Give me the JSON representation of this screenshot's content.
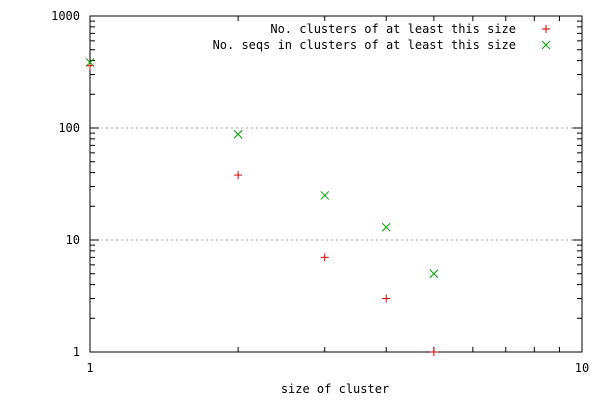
{
  "chart_data": {
    "type": "scatter",
    "title": "",
    "xlabel": "size of cluster",
    "ylabel": "",
    "x_scale": "log",
    "y_scale": "log",
    "xlim": [
      1,
      10
    ],
    "ylim": [
      1,
      1000
    ],
    "x_ticks": [
      1,
      10
    ],
    "x_tick_labels": [
      "1",
      "10"
    ],
    "y_ticks": [
      1,
      10,
      100,
      1000
    ],
    "y_tick_labels": [
      "1",
      "10",
      "100",
      "1000"
    ],
    "grid": "horizontal dotted at major y ticks",
    "legend_position": "top-right",
    "series": [
      {
        "name": "No. clusters of at least this size",
        "marker": "plus",
        "color": "#e00000",
        "x": [
          1,
          2,
          3,
          4,
          5
        ],
        "y": [
          360,
          38,
          7,
          3,
          1
        ]
      },
      {
        "name": "No. seqs in clusters of at least this size",
        "marker": "cross",
        "color": "#00a000",
        "x": [
          1,
          2,
          3,
          4,
          5
        ],
        "y": [
          385,
          88,
          25,
          13,
          5
        ]
      }
    ]
  }
}
